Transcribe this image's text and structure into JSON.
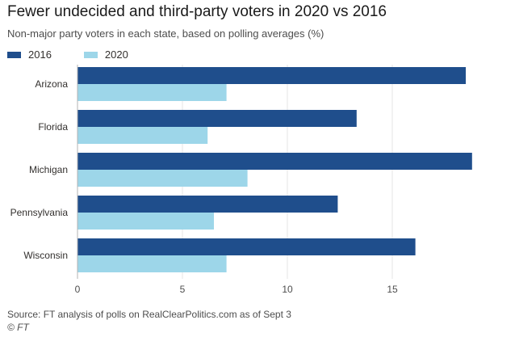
{
  "title": "Fewer undecided and third-party voters in 2020 vs 2016",
  "subtitle": "Non-major party voters in each state, based on polling averages (%)",
  "source": "Source: FT analysis of polls on RealClearPolitics.com as of Sept 3",
  "credit": "© FT",
  "chart_data": {
    "type": "bar",
    "orientation": "horizontal",
    "categories": [
      "Arizona",
      "Florida",
      "Michigan",
      "Pennsylvania",
      "Wisconsin"
    ],
    "series": [
      {
        "name": "2016",
        "color": "#1f4e8c",
        "values": [
          18.5,
          13.3,
          18.8,
          12.4,
          16.1
        ]
      },
      {
        "name": "2020",
        "color": "#9dd6e9",
        "values": [
          7.1,
          6.2,
          8.1,
          6.5,
          7.1
        ]
      }
    ],
    "xlim": [
      0,
      19
    ],
    "xticks": [
      0,
      5,
      10,
      15
    ],
    "grid": true,
    "legend": "top-left"
  }
}
